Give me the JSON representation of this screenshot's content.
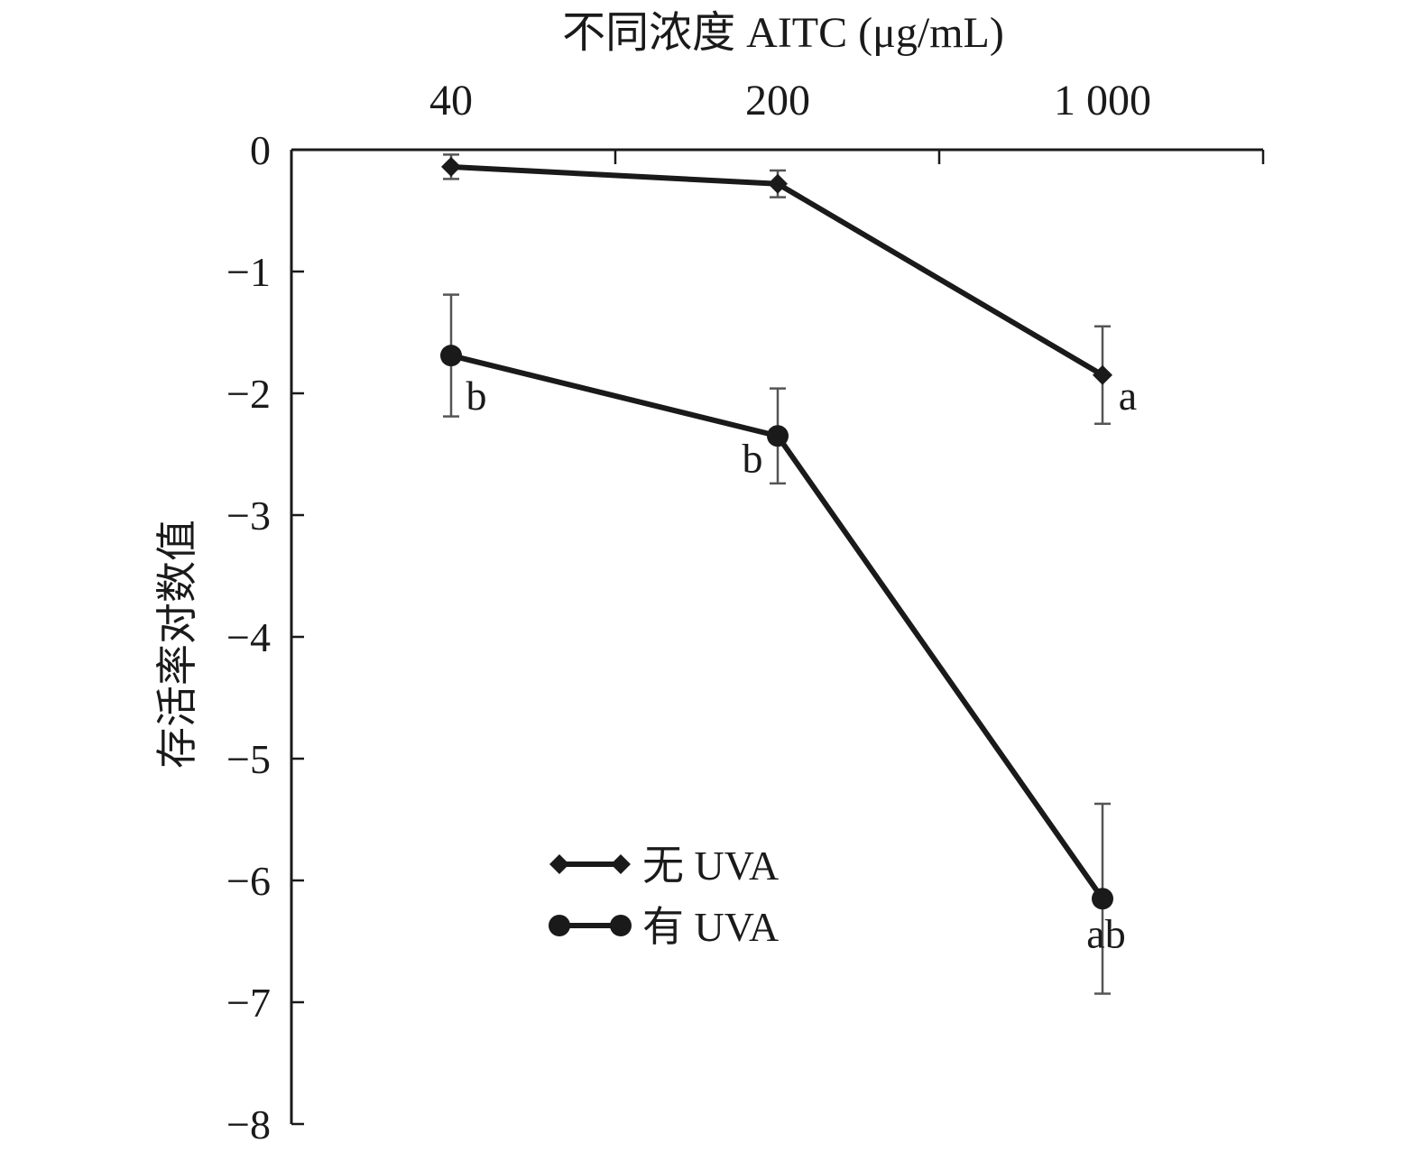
{
  "chart_data": {
    "type": "line",
    "xlabel": "不同浓度 AITC (μg/mL)",
    "ylabel": "存活率对数值",
    "categories": [
      "40",
      "200",
      "1 000"
    ],
    "ylim": [
      -8,
      0
    ],
    "yticks": [
      "0",
      "−1",
      "−2",
      "−3",
      "−4",
      "−5",
      "−6",
      "−7",
      "−8"
    ],
    "x_axis_position": "top",
    "legend_position": "bottom-left",
    "grid": false,
    "series": [
      {
        "name": "无 UVA",
        "marker": "diamond",
        "values": [
          -0.14,
          -0.28,
          -1.85
        ],
        "error": [
          0.1,
          0.11,
          0.4
        ],
        "labels": [
          "",
          "",
          "a"
        ]
      },
      {
        "name": "有 UVA",
        "marker": "circle",
        "values": [
          -1.69,
          -2.35,
          -6.15
        ],
        "error": [
          0.5,
          0.39,
          0.78
        ],
        "labels": [
          "b",
          "b",
          "ab"
        ]
      }
    ]
  }
}
